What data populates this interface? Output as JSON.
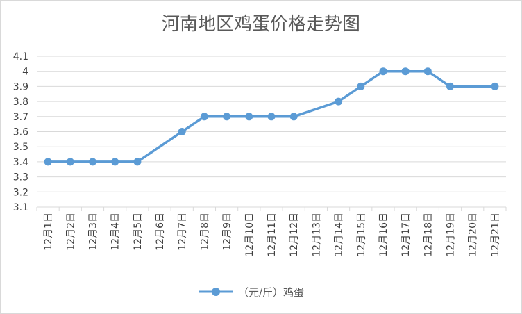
{
  "chart_data": {
    "type": "line",
    "title": "河南地区鸡蛋价格走势图",
    "xlabel": "",
    "ylabel": "",
    "ylim": [
      3.1,
      4.1
    ],
    "yticks": [
      "3.1",
      "3.2",
      "3.3",
      "3.4",
      "3.5",
      "3.6",
      "3.7",
      "3.8",
      "3.9",
      "4",
      "4.1"
    ],
    "grid": true,
    "legend_position": "bottom",
    "categories": [
      "12月1日",
      "12月2日",
      "12月3日",
      "12月4日",
      "12月5日",
      "12月6日",
      "12月7日",
      "12月8日",
      "12月9日",
      "12月10日",
      "12月11日",
      "12月12日",
      "12月13日",
      "12月14日",
      "12月15日",
      "12月16日",
      "12月17日",
      "12月18日",
      "12月19日",
      "12月20日",
      "12月21日"
    ],
    "series": [
      {
        "name": "（元/斤）鸡蛋",
        "color": "#5b9bd5",
        "values": [
          3.4,
          3.4,
          3.4,
          3.4,
          3.4,
          null,
          3.6,
          3.7,
          3.7,
          3.7,
          3.7,
          3.7,
          null,
          3.8,
          3.9,
          4.0,
          4.0,
          4.0,
          3.9,
          null,
          3.9
        ]
      }
    ]
  }
}
